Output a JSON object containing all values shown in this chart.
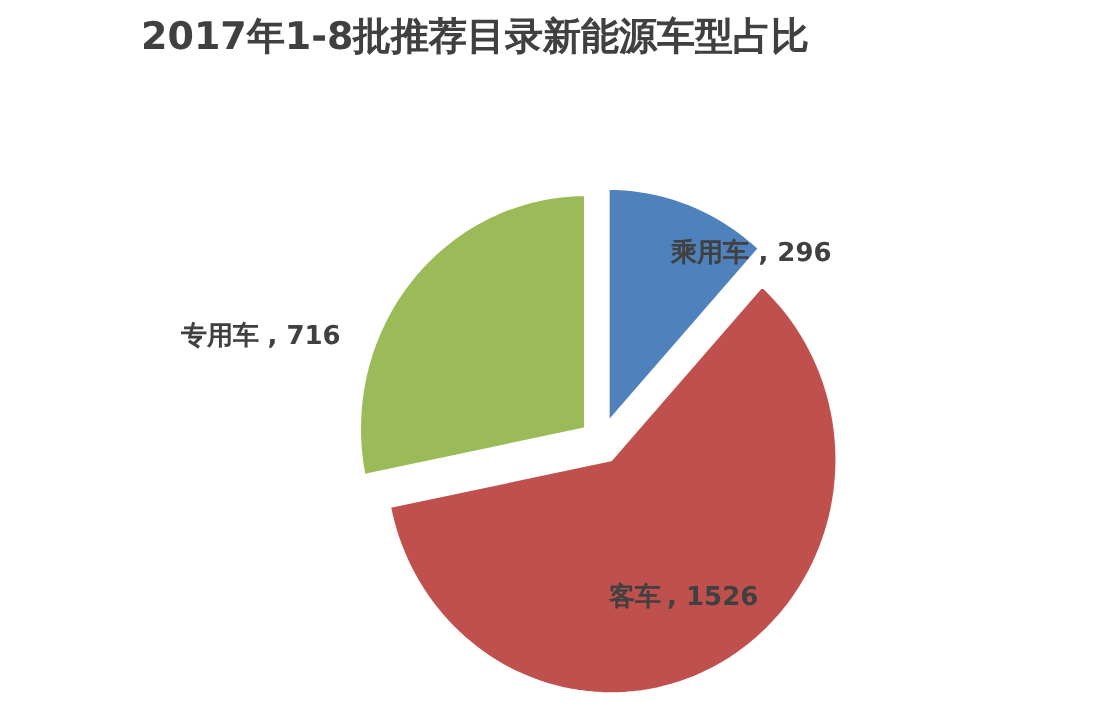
{
  "chart_data": {
    "type": "pie",
    "title": "2017年1-8批推荐目录新能源车型占比",
    "categories": [
      "乘用车",
      "客车",
      "专用车"
    ],
    "values": [
      296,
      1526,
      716
    ],
    "colors": [
      "#4f81bd",
      "#c0504d",
      "#9bbb59"
    ],
    "value_labels": [
      ", 296",
      ", 1526",
      ", 716"
    ]
  }
}
